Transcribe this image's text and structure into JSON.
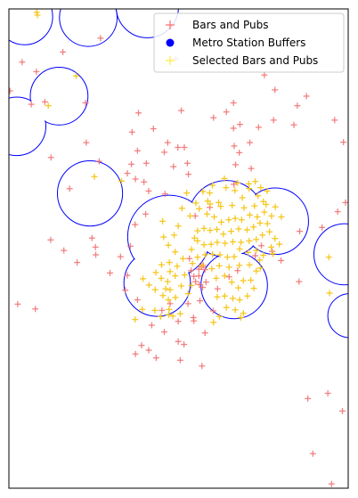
{
  "chart_data": {
    "type": "scatter",
    "title": "",
    "xlabel": "",
    "ylabel": "",
    "grid": false,
    "axes_ticks": false,
    "xlim": [
      0,
      100
    ],
    "ylim": [
      0,
      100
    ],
    "legend": {
      "placement": "top-right",
      "entries": [
        {
          "label": "Bars and Pubs",
          "marker": "+",
          "color": "#ff6b6b"
        },
        {
          "label": "Metro Station Buffers",
          "marker": "circle",
          "color": "#0000ff"
        },
        {
          "label": "Selected Bars and Pubs",
          "marker": "+",
          "color": "#ffeb3b"
        }
      ]
    },
    "colors": {
      "bars_pubs": "#f07070",
      "bars_pubs_dense": "#ff2020",
      "buffer_outline": "#0000ff",
      "selected": "#f5c518"
    },
    "buffer_circles": [
      {
        "cx": 4.6,
        "cy": 98.4,
        "r": 8.3
      },
      {
        "cx": 23.4,
        "cy": 98.2,
        "r": 8.5
      },
      {
        "cx": 40.8,
        "cy": 100.5,
        "r": 9.2
      },
      {
        "cx": 14.8,
        "cy": 81.8,
        "r": 8.5
      },
      {
        "cx": 2.3,
        "cy": 75.5,
        "r": 8.6
      },
      {
        "cx": 23.9,
        "cy": 61.5,
        "r": 9.6
      },
      {
        "cx": 47.2,
        "cy": 52.5,
        "r": 12.2
      },
      {
        "cx": 64.1,
        "cy": 56.2,
        "r": 11.3
      },
      {
        "cx": 78.5,
        "cy": 55.7,
        "r": 9.8
      },
      {
        "cx": 43.7,
        "cy": 42.8,
        "r": 9.8
      },
      {
        "cx": 66.4,
        "cy": 42.3,
        "r": 9.8
      },
      {
        "cx": 98.9,
        "cy": 48.8,
        "r": 9.0
      },
      {
        "cx": 100.5,
        "cy": 36.0,
        "r": 6.5
      }
    ],
    "series": [
      {
        "name": "Bars and Pubs",
        "points": [
          [
            0.3,
            82.9
          ],
          [
            6.6,
            80.1
          ],
          [
            22.6,
            80.4
          ],
          [
            36.3,
            74.3
          ],
          [
            38.2,
            78.3
          ],
          [
            42.6,
            75.0
          ],
          [
            45.8,
            70.1
          ],
          [
            46.8,
            72.1
          ],
          [
            50.8,
            78.8
          ],
          [
            49.8,
            71.1
          ],
          [
            51.7,
            71.1
          ],
          [
            52.6,
            67.8
          ],
          [
            52.9,
            65.5
          ],
          [
            48.5,
            67.1
          ],
          [
            40.5,
            67.8
          ],
          [
            39.8,
            63.9
          ],
          [
            41.2,
            62.0
          ],
          [
            37.9,
            70.4
          ],
          [
            26.6,
            68.2
          ],
          [
            22.8,
            72.1
          ],
          [
            36.1,
            67.6
          ],
          [
            34.9,
            65.7
          ],
          [
            37.3,
            64.5
          ],
          [
            46.0,
            61.4
          ],
          [
            40.3,
            57.2
          ],
          [
            37.2,
            55.0
          ],
          [
            16.2,
            49.6
          ],
          [
            12.3,
            51.8
          ],
          [
            24.5,
            52.2
          ],
          [
            25.5,
            50.3
          ],
          [
            20.1,
            47.1
          ],
          [
            25.6,
            48.7
          ],
          [
            35.8,
            50.5
          ],
          [
            32.9,
            48.3
          ],
          [
            29.8,
            44.9
          ],
          [
            34.9,
            44.4
          ],
          [
            34.3,
            41.3
          ],
          [
            37.9,
            39.3
          ],
          [
            45.1,
            37.1
          ],
          [
            47.5,
            38.5
          ],
          [
            52.8,
            38.5
          ],
          [
            56.3,
            39.1
          ],
          [
            42.1,
            34.0
          ],
          [
            45.8,
            32.6
          ],
          [
            49.9,
            30.6
          ],
          [
            54.5,
            34.9
          ],
          [
            57.8,
            32.4
          ],
          [
            60.2,
            37.0
          ],
          [
            39.1,
            29.8
          ],
          [
            41.2,
            28.8
          ],
          [
            43.4,
            27.2
          ],
          [
            50.5,
            26.7
          ],
          [
            2.6,
            38.4
          ],
          [
            7.8,
            37.4
          ],
          [
            37.3,
            28.0
          ],
          [
            49.9,
            34.8
          ],
          [
            61.5,
            41.6
          ],
          [
            64.9,
            44.1
          ],
          [
            67.4,
            45.4
          ],
          [
            72.6,
            48.5
          ],
          [
            74.4,
            50.6
          ],
          [
            77.6,
            49.4
          ],
          [
            80.2,
            47.5
          ],
          [
            85.7,
            53.6
          ],
          [
            92.3,
            54.4
          ],
          [
            96.9,
            57.7
          ],
          [
            99.2,
            59.6
          ],
          [
            59.2,
            58.6
          ],
          [
            66.3,
            63.4
          ],
          [
            66.8,
            67.5
          ],
          [
            67.9,
            70.0
          ],
          [
            71.4,
            66.7
          ],
          [
            66.2,
            75.1
          ],
          [
            68.1,
            75.9
          ],
          [
            73.6,
            75.3
          ],
          [
            78.0,
            76.8
          ],
          [
            78.4,
            83.1
          ],
          [
            71.0,
            72.1
          ],
          [
            66.4,
            71.4
          ],
          [
            60.3,
            77.3
          ],
          [
            64.1,
            78.5
          ],
          [
            84.0,
            75.8
          ],
          [
            85.0,
            79.8
          ],
          [
            87.7,
            81.8
          ],
          [
            96.0,
            76.8
          ],
          [
            98.6,
            72.2
          ],
          [
            3.9,
            88.9
          ],
          [
            8.1,
            86.9
          ],
          [
            12.4,
            69.0
          ],
          [
            10.6,
            80.6
          ],
          [
            27.0,
            93.9
          ],
          [
            15.9,
            91.0
          ],
          [
            17.9,
            62.5
          ],
          [
            57.1,
            88.6
          ],
          [
            49.2,
            89.6
          ],
          [
            66.2,
            80.4
          ],
          [
            75.3,
            86.2
          ],
          [
            85.5,
            43.1
          ],
          [
            88.1,
            18.7
          ],
          [
            94.0,
            19.8
          ],
          [
            98.3,
            16.1
          ],
          [
            89.6,
            7.2
          ],
          [
            95.1,
            0.9
          ],
          [
            54.4,
            35.6
          ],
          [
            56.1,
            42.5
          ],
          [
            53.7,
            45.4
          ],
          [
            53.2,
            47.9
          ],
          [
            54.9,
            56.8
          ],
          [
            56.9,
            25.5
          ],
          [
            51.6,
            30.0
          ],
          [
            55.0,
            43.1
          ],
          [
            56.0,
            44.3
          ],
          [
            57.3,
            46.5
          ],
          [
            57.1,
            41.9
          ],
          [
            57.8,
            45.6
          ],
          [
            58.1,
            43.0
          ],
          [
            56.7,
            46.2
          ],
          [
            54.5,
            44.2
          ],
          [
            56.0,
            45.7
          ]
        ]
      },
      {
        "name": "Selected Bars and Pubs",
        "points": [
          [
            8.2,
            99.3
          ],
          [
            8.4,
            98.7
          ],
          [
            19.8,
            86.0
          ],
          [
            11.6,
            79.8
          ],
          [
            25.2,
            65.0
          ],
          [
            33.2,
            64.1
          ],
          [
            45.3,
            55.7
          ],
          [
            49.9,
            54.7
          ],
          [
            51.0,
            58.4
          ],
          [
            55.1,
            59.5
          ],
          [
            52.4,
            61.6
          ],
          [
            57.2,
            61.9
          ],
          [
            59.2,
            61.6
          ],
          [
            61.8,
            59.6
          ],
          [
            64.0,
            62.7
          ],
          [
            66.6,
            62.1
          ],
          [
            68.8,
            60.6
          ],
          [
            70.8,
            62.5
          ],
          [
            73.4,
            61.0
          ],
          [
            75.0,
            59.8
          ],
          [
            58.4,
            57.2
          ],
          [
            60.5,
            56.6
          ],
          [
            62.6,
            55.5
          ],
          [
            64.8,
            56.0
          ],
          [
            66.7,
            56.3
          ],
          [
            68.6,
            56.0
          ],
          [
            71.0,
            57.0
          ],
          [
            73.2,
            56.6
          ],
          [
            75.3,
            57.6
          ],
          [
            77.4,
            56.8
          ],
          [
            76.2,
            55.2
          ],
          [
            74.0,
            55.3
          ],
          [
            72.1,
            54.5
          ],
          [
            70.2,
            53.9
          ],
          [
            67.7,
            54.1
          ],
          [
            65.5,
            53.6
          ],
          [
            63.2,
            53.0
          ],
          [
            61.3,
            54.0
          ],
          [
            59.3,
            53.8
          ],
          [
            57.5,
            54.2
          ],
          [
            55.6,
            53.7
          ],
          [
            55.6,
            51.6
          ],
          [
            57.5,
            50.8
          ],
          [
            59.6,
            50.9
          ],
          [
            61.4,
            51.3
          ],
          [
            63.7,
            51.1
          ],
          [
            66.0,
            51.4
          ],
          [
            68.4,
            51.3
          ],
          [
            70.8,
            51.6
          ],
          [
            72.9,
            51.9
          ],
          [
            74.7,
            52.8
          ],
          [
            76.8,
            53.5
          ],
          [
            78.4,
            52.1
          ],
          [
            79.7,
            50.9
          ],
          [
            77.8,
            48.9
          ],
          [
            75.0,
            48.6
          ],
          [
            72.9,
            49.6
          ],
          [
            70.5,
            49.2
          ],
          [
            68.0,
            49.9
          ],
          [
            66.4,
            48.3
          ],
          [
            64.4,
            48.2
          ],
          [
            62.2,
            48.7
          ],
          [
            60.0,
            48.8
          ],
          [
            57.8,
            48.7
          ],
          [
            55.6,
            48.2
          ],
          [
            53.8,
            49.8
          ],
          [
            54.7,
            52.2
          ],
          [
            53.4,
            56.8
          ],
          [
            56.1,
            58.3
          ],
          [
            59.3,
            59.3
          ],
          [
            62.4,
            58.8
          ],
          [
            65.8,
            59.0
          ],
          [
            69.3,
            58.5
          ],
          [
            72.4,
            58.9
          ],
          [
            75.8,
            59.2
          ],
          [
            78.5,
            58.7
          ],
          [
            80.3,
            56.6
          ],
          [
            77.3,
            50.3
          ],
          [
            73.9,
            47.6
          ],
          [
            70.9,
            46.6
          ],
          [
            67.9,
            46.5
          ],
          [
            64.9,
            46.1
          ],
          [
            62.0,
            46.4
          ],
          [
            59.8,
            45.8
          ],
          [
            56.9,
            46.5
          ],
          [
            54.1,
            46.9
          ],
          [
            51.3,
            47.9
          ],
          [
            49.0,
            49.3
          ],
          [
            47.0,
            50.7
          ],
          [
            45.6,
            52.4
          ],
          [
            48.7,
            52.8
          ],
          [
            47.5,
            45.2
          ],
          [
            49.0,
            44.3
          ],
          [
            46.8,
            43.1
          ],
          [
            44.9,
            43.8
          ],
          [
            47.5,
            41.4
          ],
          [
            45.4,
            40.2
          ],
          [
            43.1,
            41.4
          ],
          [
            41.3,
            42.4
          ],
          [
            39.5,
            43.7
          ],
          [
            43.3,
            45.0
          ],
          [
            45.0,
            46.6
          ],
          [
            47.3,
            47.1
          ],
          [
            49.6,
            46.3
          ],
          [
            51.8,
            44.5
          ],
          [
            50.8,
            42.2
          ],
          [
            49.1,
            39.8
          ],
          [
            47.0,
            39.3
          ],
          [
            50.5,
            36.4
          ],
          [
            48.3,
            35.9
          ],
          [
            47.2,
            37.3
          ],
          [
            46.2,
            41.6
          ],
          [
            61.1,
            43.8
          ],
          [
            63.6,
            44.3
          ],
          [
            65.7,
            43.0
          ],
          [
            67.6,
            41.8
          ],
          [
            69.1,
            43.3
          ],
          [
            71.3,
            43.4
          ],
          [
            72.9,
            45.3
          ],
          [
            74.1,
            45.9
          ],
          [
            72.2,
            41.7
          ],
          [
            70.3,
            40.1
          ],
          [
            68.0,
            39.3
          ],
          [
            66.0,
            39.6
          ],
          [
            63.6,
            40.1
          ],
          [
            61.4,
            39.9
          ],
          [
            64.1,
            37.7
          ],
          [
            66.7,
            37.2
          ],
          [
            69.1,
            36.5
          ],
          [
            62.1,
            35.8
          ],
          [
            60.3,
            34.6
          ],
          [
            68.3,
            35.6
          ],
          [
            39.3,
            37.3
          ],
          [
            43.0,
            37.1
          ],
          [
            47.1,
            36.2
          ],
          [
            44.7,
            35.8
          ],
          [
            37.2,
            35.2
          ],
          [
            94.5,
            40.7
          ],
          [
            94.3,
            48.2
          ],
          [
            58.6,
            59.9
          ],
          [
            63.5,
            64.6
          ],
          [
            60.0,
            63.2
          ],
          [
            67.4,
            63.7
          ],
          [
            70.7,
            63.5
          ],
          [
            72.6,
            64.0
          ],
          [
            74.2,
            62.7
          ],
          [
            76.1,
            62.0
          ],
          [
            52.8,
            40.6
          ],
          [
            53.8,
            42.3
          ]
        ]
      }
    ]
  }
}
